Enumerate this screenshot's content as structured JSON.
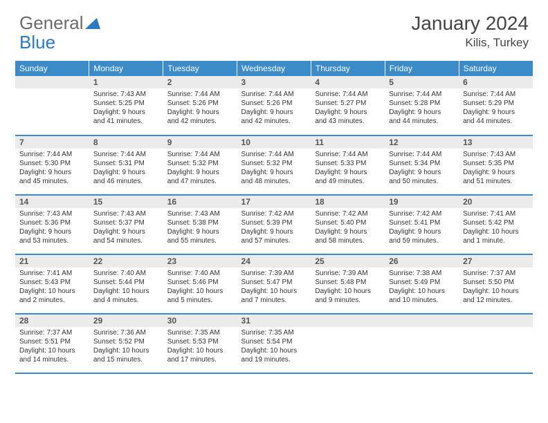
{
  "logo": {
    "word1": "General",
    "word2": "Blue"
  },
  "colors": {
    "brand_blue": "#3b8bc9",
    "header_bg": "#3b8bc9",
    "header_fg": "#ffffff",
    "daynum_bg": "#ebebeb",
    "row_border": "#3b8bc9",
    "text": "#333333",
    "logo_gray": "#6b6b6b",
    "logo_blue": "#2a7bbf"
  },
  "title": "January 2024",
  "location": "Kilis, Turkey",
  "weekdays": [
    "Sunday",
    "Monday",
    "Tuesday",
    "Wednesday",
    "Thursday",
    "Friday",
    "Saturday"
  ],
  "weeks": [
    [
      null,
      {
        "n": "1",
        "sr": "Sunrise: 7:43 AM",
        "ss": "Sunset: 5:25 PM",
        "d1": "Daylight: 9 hours",
        "d2": "and 41 minutes."
      },
      {
        "n": "2",
        "sr": "Sunrise: 7:44 AM",
        "ss": "Sunset: 5:26 PM",
        "d1": "Daylight: 9 hours",
        "d2": "and 42 minutes."
      },
      {
        "n": "3",
        "sr": "Sunrise: 7:44 AM",
        "ss": "Sunset: 5:26 PM",
        "d1": "Daylight: 9 hours",
        "d2": "and 42 minutes."
      },
      {
        "n": "4",
        "sr": "Sunrise: 7:44 AM",
        "ss": "Sunset: 5:27 PM",
        "d1": "Daylight: 9 hours",
        "d2": "and 43 minutes."
      },
      {
        "n": "5",
        "sr": "Sunrise: 7:44 AM",
        "ss": "Sunset: 5:28 PM",
        "d1": "Daylight: 9 hours",
        "d2": "and 44 minutes."
      },
      {
        "n": "6",
        "sr": "Sunrise: 7:44 AM",
        "ss": "Sunset: 5:29 PM",
        "d1": "Daylight: 9 hours",
        "d2": "and 44 minutes."
      }
    ],
    [
      {
        "n": "7",
        "sr": "Sunrise: 7:44 AM",
        "ss": "Sunset: 5:30 PM",
        "d1": "Daylight: 9 hours",
        "d2": "and 45 minutes."
      },
      {
        "n": "8",
        "sr": "Sunrise: 7:44 AM",
        "ss": "Sunset: 5:31 PM",
        "d1": "Daylight: 9 hours",
        "d2": "and 46 minutes."
      },
      {
        "n": "9",
        "sr": "Sunrise: 7:44 AM",
        "ss": "Sunset: 5:32 PM",
        "d1": "Daylight: 9 hours",
        "d2": "and 47 minutes."
      },
      {
        "n": "10",
        "sr": "Sunrise: 7:44 AM",
        "ss": "Sunset: 5:32 PM",
        "d1": "Daylight: 9 hours",
        "d2": "and 48 minutes."
      },
      {
        "n": "11",
        "sr": "Sunrise: 7:44 AM",
        "ss": "Sunset: 5:33 PM",
        "d1": "Daylight: 9 hours",
        "d2": "and 49 minutes."
      },
      {
        "n": "12",
        "sr": "Sunrise: 7:44 AM",
        "ss": "Sunset: 5:34 PM",
        "d1": "Daylight: 9 hours",
        "d2": "and 50 minutes."
      },
      {
        "n": "13",
        "sr": "Sunrise: 7:43 AM",
        "ss": "Sunset: 5:35 PM",
        "d1": "Daylight: 9 hours",
        "d2": "and 51 minutes."
      }
    ],
    [
      {
        "n": "14",
        "sr": "Sunrise: 7:43 AM",
        "ss": "Sunset: 5:36 PM",
        "d1": "Daylight: 9 hours",
        "d2": "and 53 minutes."
      },
      {
        "n": "15",
        "sr": "Sunrise: 7:43 AM",
        "ss": "Sunset: 5:37 PM",
        "d1": "Daylight: 9 hours",
        "d2": "and 54 minutes."
      },
      {
        "n": "16",
        "sr": "Sunrise: 7:43 AM",
        "ss": "Sunset: 5:38 PM",
        "d1": "Daylight: 9 hours",
        "d2": "and 55 minutes."
      },
      {
        "n": "17",
        "sr": "Sunrise: 7:42 AM",
        "ss": "Sunset: 5:39 PM",
        "d1": "Daylight: 9 hours",
        "d2": "and 57 minutes."
      },
      {
        "n": "18",
        "sr": "Sunrise: 7:42 AM",
        "ss": "Sunset: 5:40 PM",
        "d1": "Daylight: 9 hours",
        "d2": "and 58 minutes."
      },
      {
        "n": "19",
        "sr": "Sunrise: 7:42 AM",
        "ss": "Sunset: 5:41 PM",
        "d1": "Daylight: 9 hours",
        "d2": "and 59 minutes."
      },
      {
        "n": "20",
        "sr": "Sunrise: 7:41 AM",
        "ss": "Sunset: 5:42 PM",
        "d1": "Daylight: 10 hours",
        "d2": "and 1 minute."
      }
    ],
    [
      {
        "n": "21",
        "sr": "Sunrise: 7:41 AM",
        "ss": "Sunset: 5:43 PM",
        "d1": "Daylight: 10 hours",
        "d2": "and 2 minutes."
      },
      {
        "n": "22",
        "sr": "Sunrise: 7:40 AM",
        "ss": "Sunset: 5:44 PM",
        "d1": "Daylight: 10 hours",
        "d2": "and 4 minutes."
      },
      {
        "n": "23",
        "sr": "Sunrise: 7:40 AM",
        "ss": "Sunset: 5:46 PM",
        "d1": "Daylight: 10 hours",
        "d2": "and 5 minutes."
      },
      {
        "n": "24",
        "sr": "Sunrise: 7:39 AM",
        "ss": "Sunset: 5:47 PM",
        "d1": "Daylight: 10 hours",
        "d2": "and 7 minutes."
      },
      {
        "n": "25",
        "sr": "Sunrise: 7:39 AM",
        "ss": "Sunset: 5:48 PM",
        "d1": "Daylight: 10 hours",
        "d2": "and 9 minutes."
      },
      {
        "n": "26",
        "sr": "Sunrise: 7:38 AM",
        "ss": "Sunset: 5:49 PM",
        "d1": "Daylight: 10 hours",
        "d2": "and 10 minutes."
      },
      {
        "n": "27",
        "sr": "Sunrise: 7:37 AM",
        "ss": "Sunset: 5:50 PM",
        "d1": "Daylight: 10 hours",
        "d2": "and 12 minutes."
      }
    ],
    [
      {
        "n": "28",
        "sr": "Sunrise: 7:37 AM",
        "ss": "Sunset: 5:51 PM",
        "d1": "Daylight: 10 hours",
        "d2": "and 14 minutes."
      },
      {
        "n": "29",
        "sr": "Sunrise: 7:36 AM",
        "ss": "Sunset: 5:52 PM",
        "d1": "Daylight: 10 hours",
        "d2": "and 15 minutes."
      },
      {
        "n": "30",
        "sr": "Sunrise: 7:35 AM",
        "ss": "Sunset: 5:53 PM",
        "d1": "Daylight: 10 hours",
        "d2": "and 17 minutes."
      },
      {
        "n": "31",
        "sr": "Sunrise: 7:35 AM",
        "ss": "Sunset: 5:54 PM",
        "d1": "Daylight: 10 hours",
        "d2": "and 19 minutes."
      },
      null,
      null,
      null
    ]
  ]
}
